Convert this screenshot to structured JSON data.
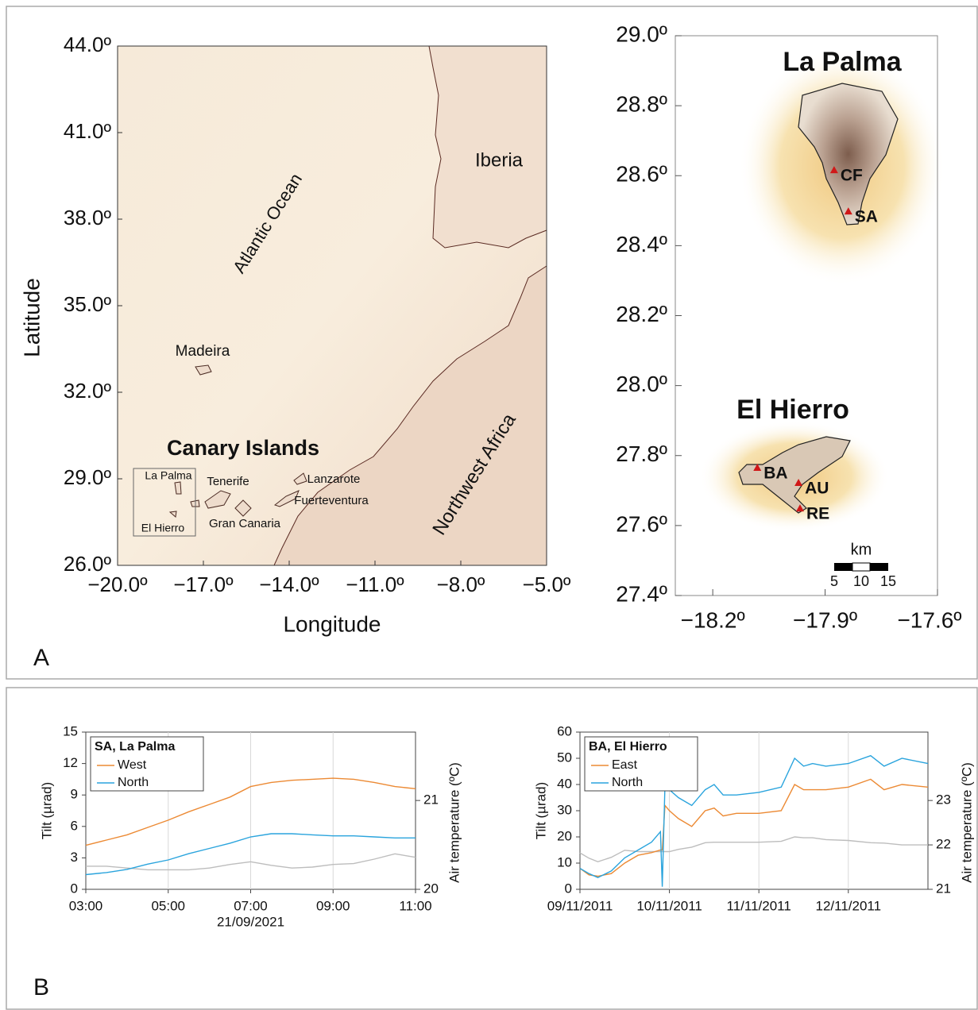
{
  "panel_a": {
    "label": "A",
    "map_overview": {
      "xlabel": "Longitude",
      "ylabel": "Latitude",
      "xlim": [
        -20,
        -5
      ],
      "ylim": [
        26,
        44
      ],
      "xticks": [
        {
          "value": -20,
          "label": "−20.0º"
        },
        {
          "value": -17,
          "label": "−17.0º"
        },
        {
          "value": -14,
          "label": "−14.0º"
        },
        {
          "value": -11,
          "label": "−11.0º"
        },
        {
          "value": -8,
          "label": "−8.0º"
        },
        {
          "value": -5,
          "label": "−5.0º"
        }
      ],
      "yticks": [
        {
          "value": 26,
          "label": "26.0º"
        },
        {
          "value": 29,
          "label": "29.0º"
        },
        {
          "value": 32,
          "label": "32.0º"
        },
        {
          "value": 35,
          "label": "35.0º"
        },
        {
          "value": 38,
          "label": "38.0º"
        },
        {
          "value": 41,
          "label": "41.0º"
        },
        {
          "value": 44,
          "label": "44.0º"
        }
      ],
      "labels": [
        "Atlantic Ocean",
        "Iberia",
        "Madeira",
        "Northwest Africa",
        "Canary Islands",
        "La Palma",
        "Tenerife",
        "El Hierro",
        "Gran Canaria",
        "Lanzarote",
        "Fuerteventura"
      ]
    },
    "map_islands": {
      "xlim": [
        -18.3,
        -17.6
      ],
      "ylim": [
        27.4,
        29.0
      ],
      "xticks": [
        {
          "value": -18.2,
          "label": "−18.2º"
        },
        {
          "value": -17.9,
          "label": "−17.9º"
        },
        {
          "value": -17.6,
          "label": "−17.6º"
        }
      ],
      "yticks": [
        {
          "value": 27.4,
          "label": "27.4º"
        },
        {
          "value": 27.6,
          "label": "27.6º"
        },
        {
          "value": 27.8,
          "label": "27.8º"
        },
        {
          "value": 28.0,
          "label": "28.0º"
        },
        {
          "value": 28.2,
          "label": "28.2º"
        },
        {
          "value": 28.4,
          "label": "28.4º"
        },
        {
          "value": 28.6,
          "label": "28.6º"
        },
        {
          "value": 28.8,
          "label": "28.8º"
        },
        {
          "value": 29.0,
          "label": "29.0º"
        }
      ],
      "islands": [
        "La Palma",
        "El Hierro"
      ],
      "stations": [
        {
          "name": "CF",
          "lon": -17.876,
          "lat": 28.614
        },
        {
          "name": "SA",
          "lon": -17.838,
          "lat": 28.496
        },
        {
          "name": "BA",
          "lon": -18.081,
          "lat": 27.763
        },
        {
          "name": "AU",
          "lon": -17.971,
          "lat": 27.72
        },
        {
          "name": "RE",
          "lon": -17.967,
          "lat": 27.647
        }
      ],
      "scale_bar": {
        "unit": "km",
        "ticks": [
          5,
          10,
          15
        ]
      }
    }
  },
  "panel_b_label": "B",
  "chart_data": [
    {
      "type": "line",
      "legend_title": "SA, La Palma",
      "legend": "upper left",
      "ylabel": "Tilt (µrad)",
      "y2label": "Air temperature (ºC)",
      "xlabel": "21/09/2021",
      "grid": "x",
      "x": [
        3,
        3.5,
        4,
        4.5,
        5,
        5.5,
        6,
        6.5,
        7,
        7.5,
        8,
        8.5,
        9,
        9.5,
        10,
        10.5,
        11
      ],
      "xlim": [
        3,
        11
      ],
      "xticks": [
        {
          "value": 3,
          "label": "03:00"
        },
        {
          "value": 5,
          "label": "05:00"
        },
        {
          "value": 7,
          "label": "07:00"
        },
        {
          "value": 9,
          "label": "09:00"
        },
        {
          "value": 11,
          "label": "11:00"
        }
      ],
      "ylim": [
        0,
        15
      ],
      "yticks": [
        0,
        3,
        6,
        9,
        12,
        15
      ],
      "y2lim": [
        20,
        21.77
      ],
      "y2ticks": [
        20,
        21
      ],
      "series": [
        {
          "name": "West",
          "color": "#ec8a34",
          "values": [
            4.2,
            4.7,
            5.2,
            5.9,
            6.6,
            7.4,
            8.1,
            8.8,
            9.8,
            10.2,
            10.4,
            10.5,
            10.6,
            10.5,
            10.2,
            9.8,
            9.6
          ]
        },
        {
          "name": "North",
          "color": "#2aa4dd",
          "values": [
            1.4,
            1.6,
            1.9,
            2.4,
            2.8,
            3.4,
            3.9,
            4.4,
            5.0,
            5.3,
            5.3,
            5.2,
            5.1,
            5.1,
            5.0,
            4.9,
            4.9
          ]
        },
        {
          "color": "#bdbdbd",
          "axis": "y2",
          "values": [
            20.26,
            20.26,
            20.24,
            20.22,
            20.22,
            20.22,
            20.24,
            20.28,
            20.31,
            20.27,
            20.24,
            20.25,
            20.28,
            20.29,
            20.34,
            20.4,
            20.36
          ]
        }
      ]
    },
    {
      "type": "line",
      "legend_title": "BA, El Hierro",
      "legend": "upper left",
      "ylabel": "Tilt (µrad)",
      "y2label": "Air temperature (ºC)",
      "grid": "x",
      "x": [
        0,
        0.1,
        0.2,
        0.35,
        0.5,
        0.65,
        0.8,
        0.9,
        0.92,
        0.95,
        1.0,
        1.1,
        1.25,
        1.4,
        1.5,
        1.6,
        1.75,
        2.0,
        2.25,
        2.4,
        2.5,
        2.6,
        2.75,
        3.0,
        3.25,
        3.4,
        3.6,
        3.89
      ],
      "xlim": [
        0,
        3.89
      ],
      "xticks": [
        {
          "value": 0,
          "label": "09/11/2011"
        },
        {
          "value": 1,
          "label": "10/11/2011"
        },
        {
          "value": 2,
          "label": "11/11/2011"
        },
        {
          "value": 3,
          "label": "12/11/2011"
        }
      ],
      "ylim": [
        0,
        60
      ],
      "yticks": [
        0,
        10,
        20,
        30,
        40,
        50,
        60
      ],
      "y2lim": [
        21,
        24.54
      ],
      "y2ticks": [
        21,
        22,
        23
      ],
      "series": [
        {
          "name": "East",
          "color": "#ec8a34",
          "values": [
            8,
            5.5,
            5,
            6,
            10,
            13,
            14,
            15,
            15,
            32,
            30,
            27,
            24,
            30,
            31,
            28,
            29,
            29,
            30,
            40,
            38,
            38,
            38,
            39,
            42,
            38,
            40,
            39
          ]
        },
        {
          "name": "North",
          "color": "#2aa4dd",
          "values": [
            8,
            6,
            4.5,
            7,
            12,
            15,
            18,
            22,
            1,
            40,
            38,
            35,
            32,
            38,
            40,
            36,
            36,
            37,
            39,
            50,
            47,
            48,
            47,
            48,
            51,
            47,
            50,
            48
          ]
        },
        {
          "color": "#bdbdbd",
          "axis": "y2",
          "values": [
            21.82,
            21.7,
            21.62,
            21.72,
            21.88,
            21.85,
            21.85,
            21.85,
            21.85,
            21.85,
            21.85,
            21.9,
            21.95,
            22.05,
            22.06,
            22.06,
            22.06,
            22.06,
            22.08,
            22.18,
            22.16,
            22.16,
            22.12,
            22.1,
            22.05,
            22.04,
            22.0,
            22.0
          ]
        }
      ]
    }
  ]
}
